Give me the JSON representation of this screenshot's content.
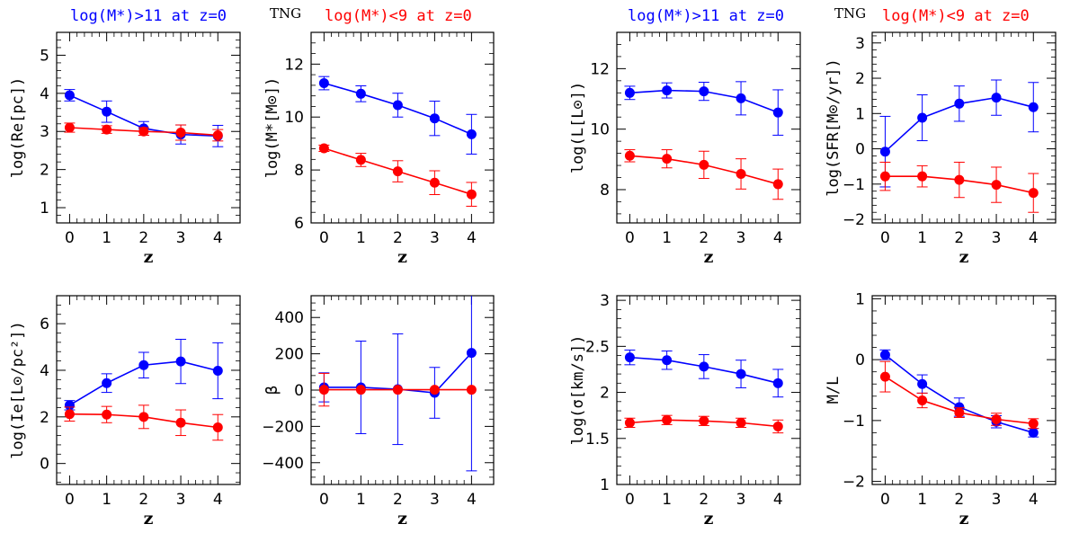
{
  "labels": {
    "left_high": "log(M*)>11 at z=0",
    "left_tng": "TNG",
    "left_low": "log(M*)<9 at z=0",
    "right_high": "log(M*)>11 at z=0",
    "right_tng": "TNG",
    "right_low": "log(M*)<9 at z=0"
  },
  "colors": {
    "high": "#0000ff",
    "low": "#ff0000"
  },
  "chart_data": [
    {
      "type": "line",
      "id": "re",
      "xlabel": "z",
      "ylabel": "log(Re[pc])",
      "x": [
        0,
        1,
        2,
        3,
        4
      ],
      "xlim": [
        -0.35,
        4.6
      ],
      "xticks": [
        0,
        1,
        2,
        3,
        4
      ],
      "ylim": [
        0.6,
        5.6
      ],
      "yticks": [
        1,
        2,
        3,
        4,
        5
      ],
      "series": [
        {
          "name": "log(M*)>11 at z=0",
          "color": "#0000ff",
          "values": [
            3.95,
            3.52,
            3.08,
            2.92,
            2.88
          ],
          "err": [
            0.15,
            0.28,
            0.18,
            0.25,
            0.28
          ]
        },
        {
          "name": "log(M*)<9 at z=0",
          "color": "#ff0000",
          "values": [
            3.1,
            3.05,
            3.0,
            2.97,
            2.9
          ],
          "err": [
            0.12,
            0.1,
            0.1,
            0.2,
            0.15
          ]
        }
      ]
    },
    {
      "type": "line",
      "id": "mstar",
      "xlabel": "z",
      "ylabel": "log(M*[M⊙])",
      "x": [
        0,
        1,
        2,
        3,
        4
      ],
      "xlim": [
        -0.35,
        4.6
      ],
      "xticks": [
        0,
        1,
        2,
        3,
        4
      ],
      "ylim": [
        6,
        13.2
      ],
      "yticks": [
        6,
        8,
        10,
        12
      ],
      "series": [
        {
          "name": "log(M*)>11 at z=0",
          "color": "#0000ff",
          "values": [
            11.28,
            10.88,
            10.45,
            9.95,
            9.35
          ],
          "err": [
            0.25,
            0.3,
            0.45,
            0.65,
            0.75
          ]
        },
        {
          "name": "log(M*)<9 at z=0",
          "color": "#ff0000",
          "values": [
            8.82,
            8.38,
            7.95,
            7.52,
            7.08
          ],
          "err": [
            0.12,
            0.25,
            0.4,
            0.45,
            0.45
          ]
        }
      ]
    },
    {
      "type": "line",
      "id": "lum",
      "xlabel": "z",
      "ylabel": "log(L[L⊙])",
      "x": [
        0,
        1,
        2,
        3,
        4
      ],
      "xlim": [
        -0.35,
        4.6
      ],
      "xticks": [
        0,
        1,
        2,
        3,
        4
      ],
      "ylim": [
        6.9,
        13.2
      ],
      "yticks": [
        8,
        10,
        12
      ],
      "series": [
        {
          "name": "log(M*)>11 at z=0",
          "color": "#0000ff",
          "values": [
            11.2,
            11.28,
            11.25,
            11.02,
            10.55
          ],
          "err": [
            0.22,
            0.25,
            0.3,
            0.55,
            0.75
          ]
        },
        {
          "name": "log(M*)<9 at z=0",
          "color": "#ff0000",
          "values": [
            9.12,
            9.02,
            8.82,
            8.52,
            8.18
          ],
          "err": [
            0.2,
            0.3,
            0.45,
            0.5,
            0.5
          ]
        }
      ]
    },
    {
      "type": "line",
      "id": "sfr",
      "xlabel": "z",
      "ylabel": "log(SFR[M⊙/yr])",
      "x": [
        0,
        1,
        2,
        3,
        4
      ],
      "xlim": [
        -0.35,
        4.6
      ],
      "xticks": [
        0,
        1,
        2,
        3,
        4
      ],
      "ylim": [
        -2.1,
        3.3
      ],
      "yticks": [
        -2,
        -1,
        0,
        1,
        2,
        3
      ],
      "series": [
        {
          "name": "log(M*)>11 at z=0",
          "color": "#0000ff",
          "values": [
            -0.08,
            0.88,
            1.28,
            1.45,
            1.18
          ],
          "err": [
            1.0,
            0.65,
            0.5,
            0.5,
            0.7
          ]
        },
        {
          "name": "log(M*)<9 at z=0",
          "color": "#ff0000",
          "values": [
            -0.78,
            -0.78,
            -0.88,
            -1.02,
            -1.25
          ],
          "err": [
            0.4,
            0.3,
            0.5,
            0.5,
            0.55
          ]
        }
      ]
    },
    {
      "type": "line",
      "id": "ie",
      "xlabel": "z",
      "ylabel": "log(Ie[L⊙/pc²])",
      "x": [
        0,
        1,
        2,
        3,
        4
      ],
      "xlim": [
        -0.35,
        4.6
      ],
      "xticks": [
        0,
        1,
        2,
        3,
        4
      ],
      "ylim": [
        -0.9,
        7.2
      ],
      "yticks": [
        0,
        2,
        4,
        6
      ],
      "series": [
        {
          "name": "log(M*)>11 at z=0",
          "color": "#0000ff",
          "values": [
            2.5,
            3.45,
            4.22,
            4.38,
            3.98
          ],
          "err": [
            0.2,
            0.4,
            0.55,
            0.95,
            1.2
          ]
        },
        {
          "name": "log(M*)<9 at z=0",
          "color": "#ff0000",
          "values": [
            2.12,
            2.1,
            2.0,
            1.75,
            1.55
          ],
          "err": [
            0.3,
            0.35,
            0.5,
            0.55,
            0.55
          ]
        }
      ]
    },
    {
      "type": "line",
      "id": "beta",
      "xlabel": "z",
      "ylabel": "β",
      "x": [
        0,
        1,
        2,
        3,
        4
      ],
      "xlim": [
        -0.35,
        4.6
      ],
      "xticks": [
        0,
        1,
        2,
        3,
        4
      ],
      "ylim": [
        -520,
        520
      ],
      "yticks": [
        -400,
        -200,
        0,
        200,
        400
      ],
      "series": [
        {
          "name": "log(M*)>11 at z=0",
          "color": "#0000ff",
          "values": [
            15,
            15,
            5,
            -15,
            205
          ],
          "err": [
            80,
            255,
            305,
            140,
            650
          ]
        },
        {
          "name": "log(M*)<9 at z=0",
          "color": "#ff0000",
          "values": [
            2,
            2,
            2,
            2,
            2
          ],
          "err": [
            90,
            0,
            0,
            0,
            0
          ]
        }
      ]
    },
    {
      "type": "line",
      "id": "sigma",
      "xlabel": "z",
      "ylabel": "log(σ[km/s])",
      "x": [
        0,
        1,
        2,
        3,
        4
      ],
      "xlim": [
        -0.35,
        4.6
      ],
      "xticks": [
        0,
        1,
        2,
        3,
        4
      ],
      "ylim": [
        1.0,
        3.05
      ],
      "yticks": [
        1,
        1.5,
        2,
        2.5,
        3
      ],
      "series": [
        {
          "name": "log(M*)>11 at z=0",
          "color": "#0000ff",
          "values": [
            2.38,
            2.35,
            2.28,
            2.2,
            2.1
          ],
          "err": [
            0.08,
            0.1,
            0.13,
            0.15,
            0.15
          ]
        },
        {
          "name": "log(M*)<9 at z=0",
          "color": "#ff0000",
          "values": [
            1.67,
            1.7,
            1.69,
            1.67,
            1.63
          ],
          "err": [
            0.05,
            0.05,
            0.05,
            0.05,
            0.07
          ]
        }
      ]
    },
    {
      "type": "line",
      "id": "ml",
      "xlabel": "z",
      "ylabel": "M/L",
      "x": [
        0,
        1,
        2,
        3,
        4
      ],
      "xlim": [
        -0.35,
        4.6
      ],
      "xticks": [
        0,
        1,
        2,
        3,
        4
      ],
      "ylim": [
        -2.05,
        1.05
      ],
      "yticks": [
        -2,
        -1,
        0,
        1
      ],
      "series": [
        {
          "name": "log(M*)>11 at z=0",
          "color": "#0000ff",
          "values": [
            0.08,
            -0.4,
            -0.78,
            -1.02,
            -1.2
          ],
          "err": [
            0.08,
            0.15,
            0.15,
            0.1,
            0.07
          ]
        },
        {
          "name": "log(M*)<9 at z=0",
          "color": "#ff0000",
          "values": [
            -0.28,
            -0.67,
            -0.87,
            -0.98,
            -1.05
          ],
          "err": [
            0.25,
            0.12,
            0.08,
            0.1,
            0.08
          ]
        }
      ]
    }
  ]
}
